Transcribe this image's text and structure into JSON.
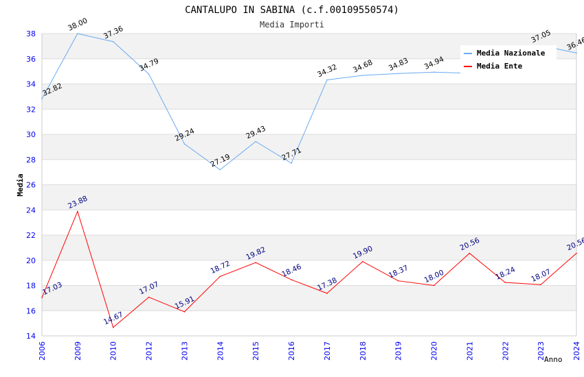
{
  "chart_data": {
    "type": "line",
    "title": "CANTALUPO IN SABINA (c.f.00109550574)",
    "subtitle": "Media Importi",
    "xlabel": "Anno",
    "ylabel": "Media",
    "ylim": [
      14,
      38
    ],
    "yticks": [
      "14",
      "16",
      "18",
      "20",
      "22",
      "24",
      "26",
      "28",
      "30",
      "32",
      "34",
      "36",
      "38"
    ],
    "grid": true,
    "legend_position": "top-right",
    "categories": [
      "2006",
      "2009",
      "2010",
      "2012",
      "2013",
      "2014",
      "2015",
      "2016",
      "2017",
      "2018",
      "2019",
      "2020",
      "2021",
      "2022",
      "2023",
      "2024"
    ],
    "series": [
      {
        "name": "Media Nazionale",
        "color": "#6aaaf0",
        "values": [
          32.82,
          38.0,
          37.36,
          34.79,
          29.24,
          27.19,
          29.43,
          27.71,
          34.32,
          34.68,
          34.83,
          34.94,
          34.85,
          34.85,
          37.05,
          36.46
        ],
        "labels": [
          "32.82",
          "38.00",
          "37.36",
          "34.79",
          "29.24",
          "27.19",
          "29.43",
          "27.71",
          "34.32",
          "34.68",
          "34.83",
          "34.94",
          "",
          "",
          "37.05",
          "36.46"
        ]
      },
      {
        "name": "Media Ente",
        "color": "#ff0000",
        "values": [
          17.03,
          23.88,
          14.67,
          17.07,
          15.91,
          18.72,
          19.82,
          18.46,
          17.38,
          19.9,
          18.37,
          18.0,
          20.56,
          18.24,
          18.07,
          20.56
        ],
        "labels": [
          "17.03",
          "23.88",
          "14.67",
          "17.07",
          "15.91",
          "18.72",
          "19.82",
          "18.46",
          "17.38",
          "19.90",
          "18.37",
          "18.00",
          "20.56",
          "18.24",
          "18.07",
          "20.56"
        ]
      }
    ]
  }
}
